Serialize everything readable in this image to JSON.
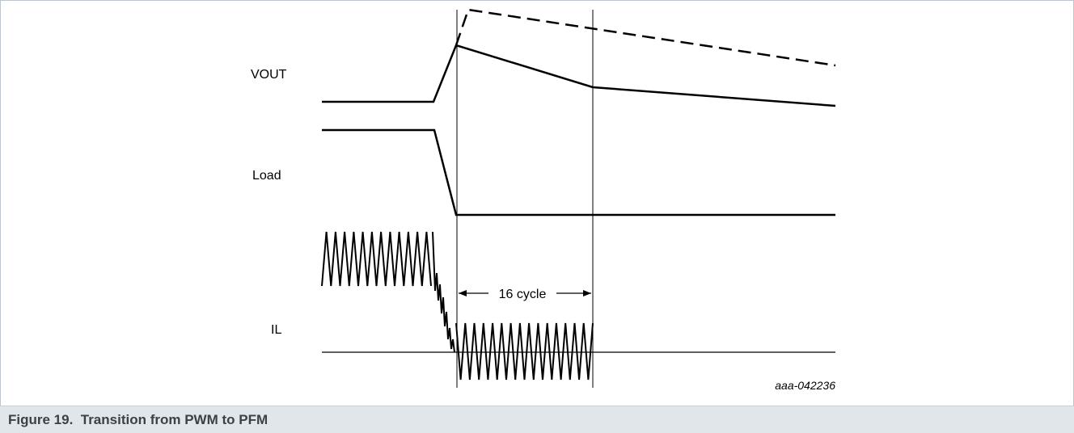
{
  "figure": {
    "caption": "Figure 19.  Transition from PWM to PFM",
    "signals": {
      "vout": "VOUT",
      "load": "Load",
      "il": "IL"
    },
    "cycle_annotation": "16 cycle",
    "figure_code": "aaa-042236"
  }
}
